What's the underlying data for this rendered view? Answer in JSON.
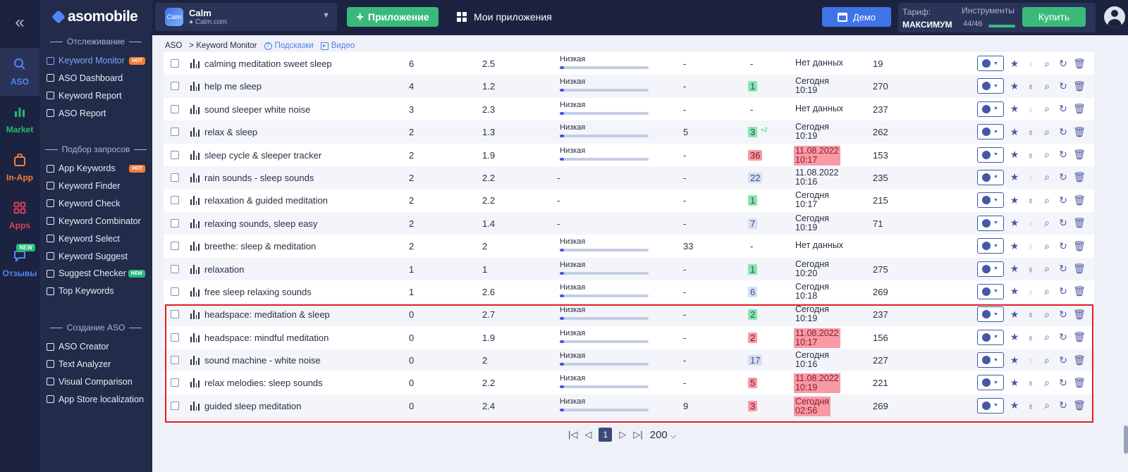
{
  "rail": [
    {
      "label": "ASO",
      "icon": "search-icon",
      "color": "#4f86f7"
    },
    {
      "label": "Market",
      "icon": "bar-chart-icon",
      "color": "#27b978"
    },
    {
      "label": "In-App",
      "icon": "bag-icon",
      "color": "#f0803c"
    },
    {
      "label": "Apps",
      "icon": "apps-grid-icon",
      "color": "#e0405a"
    },
    {
      "label": "Отзывы",
      "icon": "chat-icon",
      "color": "#4f86f7",
      "badge": "NEW"
    }
  ],
  "sidebar": {
    "logo": "asomobile",
    "sections": [
      {
        "title": "Отслеживание",
        "items": [
          {
            "label": "Keyword Monitor",
            "tag": "HOT",
            "active": true
          },
          {
            "label": "ASO Dashboard"
          },
          {
            "label": "Keyword Report"
          },
          {
            "label": "ASO Report"
          }
        ]
      },
      {
        "title": "Подбор запросов",
        "items": [
          {
            "label": "App Keywords",
            "tag": "HOT"
          },
          {
            "label": "Keyword Finder"
          },
          {
            "label": "Keyword Check"
          },
          {
            "label": "Keyword Combinator"
          },
          {
            "label": "Keyword Select"
          },
          {
            "label": "Keyword Suggest"
          },
          {
            "label": "Suggest Checker",
            "tag": "NEW"
          },
          {
            "label": "Top Keywords"
          }
        ]
      },
      {
        "title": "Создание ASO",
        "items": [
          {
            "label": "ASO Creator"
          },
          {
            "label": "Text Analyzer"
          },
          {
            "label": "Visual Comparison"
          },
          {
            "label": "App Store localization"
          }
        ]
      }
    ]
  },
  "topbar": {
    "app_name": "Calm",
    "app_domain": "Calm.com",
    "app_icon_text": "Calm",
    "add_app": "Приложение",
    "my_apps": "Мои приложения",
    "demo": "Демо",
    "tariff_label": "Тариф:",
    "tariff_plan": "МАКСИМУМ",
    "tools_label": "Инструменты",
    "tools_count": "44/46",
    "tools_usage": 0.957,
    "buy": "Купить"
  },
  "breadcrumb": {
    "root": "ASO",
    "current": "> Keyword Monitor",
    "hints": "Подсказки",
    "video": "Видео"
  },
  "rows": [
    {
      "kw": "calming meditation sweet sleep",
      "pos": "6",
      "diff": "2.5",
      "comp": "Низкая",
      "comp_level": 0.04,
      "c5": "-",
      "c6": "-",
      "c6style": "",
      "delta": "",
      "date": "Нет данных",
      "date_style": "",
      "c8": "19"
    },
    {
      "kw": "help me sleep",
      "pos": "4",
      "diff": "1.2",
      "comp": "Низкая",
      "comp_level": 0.04,
      "c5": "-",
      "c6": "1",
      "c6style": "green",
      "delta": "",
      "date": "Сегодня 10:19",
      "date_style": "",
      "c8": "270"
    },
    {
      "kw": "sound sleeper white noise",
      "pos": "3",
      "diff": "2.3",
      "comp": "Низкая",
      "comp_level": 0.04,
      "c5": "-",
      "c6": "-",
      "c6style": "",
      "delta": "",
      "date": "Нет данных",
      "date_style": "",
      "c8": "237"
    },
    {
      "kw": "relax & sleep",
      "pos": "2",
      "diff": "1.3",
      "comp": "Низкая",
      "comp_level": 0.04,
      "c5": "5",
      "c6": "3",
      "c6style": "green",
      "delta": "+2",
      "date": "Сегодня 10:19",
      "date_style": "",
      "c8": "262"
    },
    {
      "kw": "sleep cycle & sleeper tracker",
      "pos": "2",
      "diff": "1.9",
      "comp": "Низкая",
      "comp_level": 0.04,
      "c5": "-",
      "c6": "36",
      "c6style": "red",
      "delta": "",
      "date": "11.08.2022 10:17",
      "date_style": "red",
      "c8": "153"
    },
    {
      "kw": "rain sounds - sleep sounds",
      "pos": "2",
      "diff": "2.2",
      "comp": "-",
      "comp_level": null,
      "c5": "-",
      "c6": "22",
      "c6style": "blue",
      "delta": "",
      "date": "11.08.2022 10:16",
      "date_style": "",
      "c8": "235"
    },
    {
      "kw": "relaxation & guided meditation",
      "pos": "2",
      "diff": "2.2",
      "comp": "-",
      "comp_level": null,
      "c5": "-",
      "c6": "1",
      "c6style": "green",
      "delta": "",
      "date": "Сегодня 10:17",
      "date_style": "",
      "c8": "215"
    },
    {
      "kw": "relaxing sounds, sleep easy",
      "pos": "2",
      "diff": "1.4",
      "comp": "-",
      "comp_level": null,
      "c5": "-",
      "c6": "7",
      "c6style": "blue",
      "delta": "",
      "date": "Сегодня 10:19",
      "date_style": "",
      "c8": "71"
    },
    {
      "kw": "breethe: sleep & meditation",
      "pos": "2",
      "diff": "2",
      "comp": "Низкая",
      "comp_level": 0.04,
      "c5": "33",
      "c6": "-",
      "c6style": "",
      "delta": "",
      "date": "Нет данных",
      "date_style": "",
      "c8": ""
    },
    {
      "kw": "relaxation",
      "pos": "1",
      "diff": "1",
      "comp": "Низкая",
      "comp_level": 0.04,
      "c5": "-",
      "c6": "1",
      "c6style": "green",
      "delta": "",
      "date": "Сегодня 10:20",
      "date_style": "",
      "c8": "275"
    },
    {
      "kw": "free sleep relaxing sounds",
      "pos": "1",
      "diff": "2.6",
      "comp": "Низкая",
      "comp_level": 0.04,
      "c5": "-",
      "c6": "6",
      "c6style": "blue",
      "delta": "",
      "date": "Сегодня 10:18",
      "date_style": "",
      "c8": "269"
    },
    {
      "kw": "headspace: meditation & sleep",
      "pos": "0",
      "diff": "2.7",
      "comp": "Низкая",
      "comp_level": 0.04,
      "c5": "-",
      "c6": "2",
      "c6style": "green",
      "delta": "",
      "date": "Сегодня 10:19",
      "date_style": "",
      "c8": "237"
    },
    {
      "kw": "headspace: mindful meditation",
      "pos": "0",
      "diff": "1.9",
      "comp": "Низкая",
      "comp_level": 0.04,
      "c5": "-",
      "c6": "2",
      "c6style": "red",
      "delta": "",
      "date": "11.08.2022 10:17",
      "date_style": "red",
      "c8": "156"
    },
    {
      "kw": "sound machine - white noise",
      "pos": "0",
      "diff": "2",
      "comp": "Низкая",
      "comp_level": 0.04,
      "c5": "-",
      "c6": "17",
      "c6style": "blue",
      "delta": "",
      "date": "Сегодня 10:16",
      "date_style": "",
      "c8": "227"
    },
    {
      "kw": "relax melodies: sleep sounds",
      "pos": "0",
      "diff": "2.2",
      "comp": "Низкая",
      "comp_level": 0.04,
      "c5": "-",
      "c6": "5",
      "c6style": "red",
      "delta": "",
      "date": "11.08.2022 10:19",
      "date_style": "red",
      "c8": "221"
    },
    {
      "kw": "guided sleep meditation",
      "pos": "0",
      "diff": "2.4",
      "comp": "Низкая",
      "comp_level": 0.04,
      "c5": "9",
      "c6": "3",
      "c6style": "red",
      "delta": "",
      "date": "Сегодня 02:56",
      "date_style": "red",
      "c8": "269"
    }
  ],
  "pagination": {
    "current": "1",
    "per_page": "200"
  }
}
